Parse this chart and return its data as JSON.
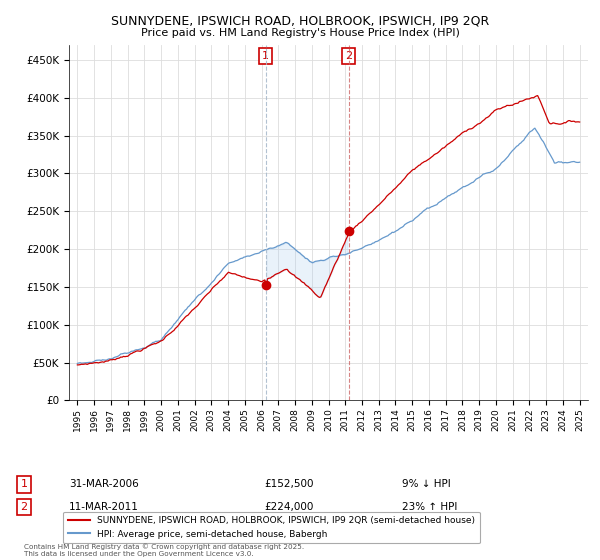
{
  "title": "SUNNYDENE, IPSWICH ROAD, HOLBROOK, IPSWICH, IP9 2QR",
  "subtitle": "Price paid vs. HM Land Registry's House Price Index (HPI)",
  "background_color": "#ffffff",
  "plot_bg_color": "#ffffff",
  "grid_color": "#dddddd",
  "legend_label_red": "SUNNYDENE, IPSWICH ROAD, HOLBROOK, IPSWICH, IP9 2QR (semi-detached house)",
  "legend_label_blue": "HPI: Average price, semi-detached house, Babergh",
  "footer": "Contains HM Land Registry data © Crown copyright and database right 2025.\nThis data is licensed under the Open Government Licence v3.0.",
  "annotation1_date": "31-MAR-2006",
  "annotation1_price": "£152,500",
  "annotation1_hpi": "9% ↓ HPI",
  "annotation2_date": "11-MAR-2011",
  "annotation2_price": "£224,000",
  "annotation2_hpi": "23% ↑ HPI",
  "ylim": [
    0,
    470000
  ],
  "yticks": [
    0,
    50000,
    100000,
    150000,
    200000,
    250000,
    300000,
    350000,
    400000,
    450000
  ],
  "red_color": "#cc0000",
  "blue_color": "#6699cc",
  "shade_color": "#aaccee",
  "marker1_x": 2006.25,
  "marker1_y": 152500,
  "marker2_x": 2011.2,
  "marker2_y": 224000,
  "xmin": 1995,
  "xmax": 2025
}
